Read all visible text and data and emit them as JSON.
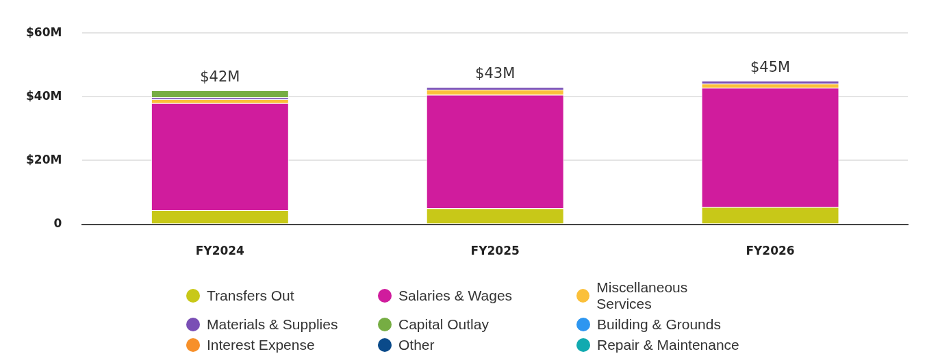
{
  "chart_data": {
    "type": "bar",
    "stacked": true,
    "categories": [
      "FY2024",
      "FY2025",
      "FY2026"
    ],
    "series": [
      {
        "name": "Transfers Out",
        "color": "#c8c818",
        "values": [
          4.4,
          5.0,
          5.4
        ]
      },
      {
        "name": "Salaries & Wages",
        "color": "#d01c9d",
        "values": [
          33.6,
          35.6,
          37.4
        ]
      },
      {
        "name": "Miscellaneous Services",
        "color": "#fbc03a",
        "values": [
          1.2,
          1.6,
          1.3
        ]
      },
      {
        "name": "Materials & Supplies",
        "color": "#7a4fb5",
        "values": [
          0.6,
          0.8,
          0.9
        ]
      },
      {
        "name": "Capital Outlay",
        "color": "#76ad43",
        "values": [
          2.2,
          0,
          0
        ]
      },
      {
        "name": "Building & Grounds",
        "color": "#2e96f0",
        "values": [
          0,
          0,
          0
        ]
      },
      {
        "name": "Interest Expense",
        "color": "#f7902a",
        "values": [
          0,
          0,
          0
        ]
      },
      {
        "name": "Other",
        "color": "#0a4a8a",
        "values": [
          0,
          0,
          0
        ]
      },
      {
        "name": "Repair & Maintenance",
        "color": "#12aab0",
        "values": [
          0,
          0,
          0
        ]
      }
    ],
    "ylim": [
      0,
      60
    ],
    "yticks": [
      0,
      {
        "value": 20,
        "label": "$20M"
      },
      {
        "value": 40,
        "label": "$40M"
      },
      {
        "value": 60,
        "label": "$60M"
      }
    ],
    "totals": [
      "$42M",
      "$43M",
      "$45M"
    ],
    "grid": "y",
    "legend": "bottom"
  }
}
